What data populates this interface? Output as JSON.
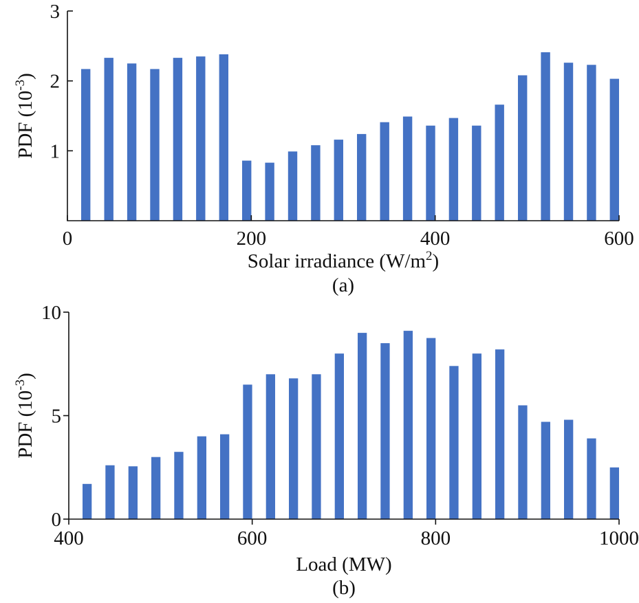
{
  "chart_data": [
    {
      "type": "bar",
      "xlabel": "Solar irradiance (W/m2)",
      "xlabel_main": "Solar irradiance (W/m",
      "xlabel_sup": "2",
      "xlabel_end": ")",
      "ylabel": "PDF (10-3)",
      "ylabel_main": "PDF (10",
      "ylabel_sup": "-3",
      "ylabel_end": ")",
      "caption": "(a)",
      "xlim": [
        0,
        600
      ],
      "ylim": [
        0,
        3
      ],
      "x_ticks": [
        0,
        200,
        400,
        600
      ],
      "x_tick_labels": [
        "0",
        "200",
        "400",
        "600"
      ],
      "y_ticks": [
        1,
        2,
        3
      ],
      "y_tick_labels": [
        "1",
        "2",
        "3"
      ],
      "x": [
        25,
        50,
        75,
        100,
        125,
        150,
        175,
        200,
        225,
        250,
        275,
        300,
        325,
        350,
        375,
        400,
        425,
        450,
        475,
        500,
        525,
        550,
        575,
        600
      ],
      "values": [
        2.17,
        2.33,
        2.25,
        2.17,
        2.33,
        2.35,
        2.38,
        0.86,
        0.83,
        0.99,
        1.08,
        1.16,
        1.24,
        1.41,
        1.49,
        1.36,
        1.47,
        1.36,
        1.66,
        2.08,
        2.41,
        2.26,
        2.23,
        2.03
      ],
      "grid": false,
      "bar_color": "#4472c4"
    },
    {
      "type": "bar",
      "xlabel": "Load (MW)",
      "ylabel": "PDF (10-3)",
      "ylabel_main": "PDF (10",
      "ylabel_sup": "-3",
      "ylabel_end": ")",
      "caption": "(b)",
      "xlim": [
        400,
        1000
      ],
      "ylim": [
        0,
        10
      ],
      "x_ticks": [
        400,
        600,
        800,
        1000
      ],
      "x_tick_labels": [
        "400",
        "600",
        "800",
        "1000"
      ],
      "y_ticks": [
        0,
        5,
        10
      ],
      "y_tick_labels": [
        "0",
        "5",
        "10"
      ],
      "x": [
        425,
        450,
        475,
        500,
        525,
        550,
        575,
        600,
        625,
        650,
        675,
        700,
        725,
        750,
        775,
        800,
        825,
        850,
        875,
        900,
        925,
        950,
        975,
        1000
      ],
      "values": [
        1.7,
        2.6,
        2.55,
        3.0,
        3.25,
        4.0,
        4.1,
        6.5,
        7.0,
        6.8,
        7.0,
        8.0,
        9.0,
        8.5,
        9.1,
        8.75,
        7.4,
        8.0,
        8.2,
        5.5,
        4.7,
        4.8,
        3.9,
        2.5
      ],
      "grid": false,
      "bar_color": "#4472c4"
    }
  ]
}
